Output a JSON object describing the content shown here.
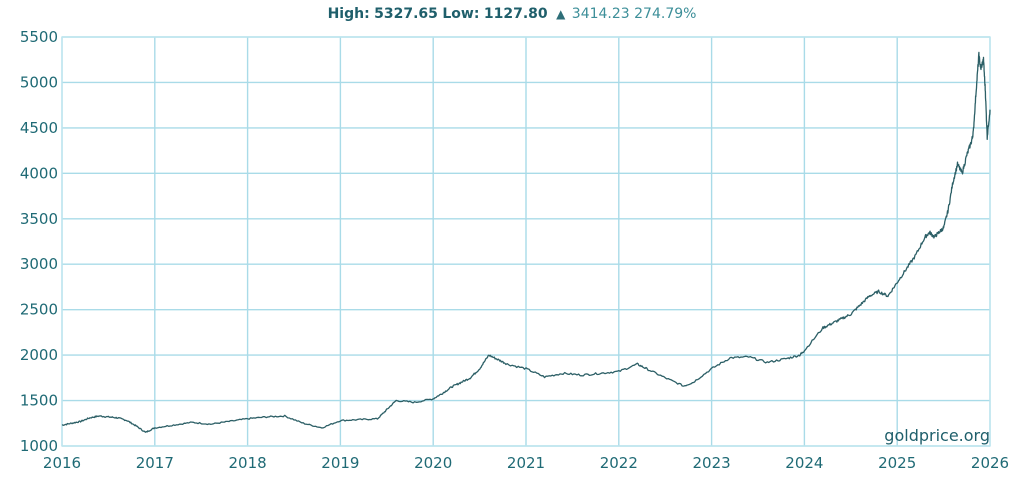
{
  "header": {
    "high_label": "High:",
    "high_value": "5327.65",
    "low_label": "Low:",
    "low_value": "1127.80",
    "arrow": "▲",
    "change": "3414.23",
    "change_pct": "274.79%"
  },
  "watermark": "goldprice.org",
  "colors": {
    "line": "#2c5f66",
    "grid": "#a9dbe8",
    "axis_text": "#1f6a75",
    "frame": "#bfe6ef"
  },
  "chart_data": {
    "type": "line",
    "title": "",
    "xlabel": "",
    "ylabel": "",
    "xlim": [
      2016,
      2026
    ],
    "ylim": [
      1000,
      5500
    ],
    "x_ticks": [
      "2016",
      "2017",
      "2018",
      "2019",
      "2020",
      "2021",
      "2022",
      "2023",
      "2024",
      "2025",
      "2026"
    ],
    "y_ticks": [
      "1000",
      "1500",
      "2000",
      "2500",
      "3000",
      "3500",
      "4000",
      "4500",
      "5000",
      "5500"
    ],
    "grid": true,
    "series": [
      {
        "x": [
          2016.0,
          2016.1,
          2016.2,
          2016.3,
          2016.4,
          2016.5,
          2016.6,
          2016.7,
          2016.8,
          2016.9,
          2017.0,
          2017.2,
          2017.4,
          2017.6,
          2017.8,
          2018.0,
          2018.2,
          2018.4,
          2018.6,
          2018.8,
          2019.0,
          2019.2,
          2019.4,
          2019.5,
          2019.6,
          2019.8,
          2020.0,
          2020.1,
          2020.2,
          2020.3,
          2020.4,
          2020.5,
          2020.6,
          2020.7,
          2020.8,
          2021.0,
          2021.2,
          2021.4,
          2021.6,
          2021.8,
          2022.0,
          2022.2,
          2022.3,
          2022.5,
          2022.7,
          2022.8,
          2023.0,
          2023.2,
          2023.4,
          2023.6,
          2023.8,
          2023.95,
          2024.0,
          2024.2,
          2024.3,
          2024.4,
          2024.5,
          2024.6,
          2024.7,
          2024.8,
          2024.9,
          2025.0,
          2025.1,
          2025.2,
          2025.3,
          2025.35,
          2025.4,
          2025.45,
          2025.5,
          2025.55,
          2025.6,
          2025.65,
          2025.7,
          2025.75,
          2025.8,
          2025.82,
          2025.85,
          2025.88,
          2025.9,
          2025.93,
          2025.95,
          2025.97,
          2026.0
        ],
        "y": [
          1230,
          1250,
          1270,
          1310,
          1330,
          1320,
          1310,
          1280,
          1220,
          1150,
          1200,
          1230,
          1260,
          1240,
          1270,
          1300,
          1320,
          1330,
          1250,
          1200,
          1280,
          1290,
          1300,
          1400,
          1500,
          1480,
          1520,
          1580,
          1650,
          1700,
          1750,
          1850,
          2000,
          1950,
          1900,
          1850,
          1760,
          1800,
          1780,
          1800,
          1820,
          1900,
          1850,
          1750,
          1660,
          1700,
          1850,
          1970,
          1980,
          1920,
          1960,
          2000,
          2050,
          2300,
          2350,
          2400,
          2450,
          2550,
          2650,
          2700,
          2650,
          2800,
          2950,
          3100,
          3300,
          3350,
          3300,
          3350,
          3400,
          3600,
          3900,
          4100,
          4000,
          4200,
          4350,
          4450,
          4900,
          5300,
          5150,
          5250,
          4900,
          4400,
          4700
        ]
      }
    ]
  }
}
